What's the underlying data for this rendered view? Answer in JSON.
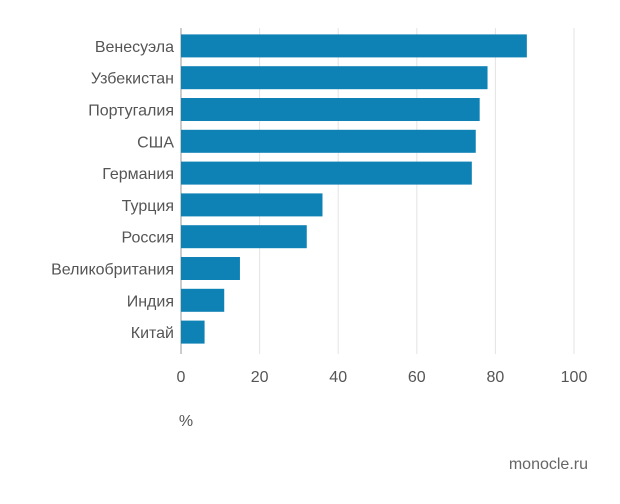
{
  "chart_data": {
    "type": "bar",
    "orientation": "horizontal",
    "categories": [
      "Венесуэла",
      "Узбекистан",
      "Португалия",
      "США",
      "Германия",
      "Турция",
      "Россия",
      "Великобритания",
      "Индия",
      "Китай"
    ],
    "values": [
      88,
      78,
      76,
      75,
      74,
      36,
      32,
      15,
      11,
      6
    ],
    "xticks": [
      "0",
      "20",
      "40",
      "60",
      "80",
      "100"
    ],
    "xlim": [
      0,
      100
    ],
    "unit": "%",
    "grid": true,
    "bar_color": "#0e82b4"
  },
  "credit": "monocle.ru"
}
